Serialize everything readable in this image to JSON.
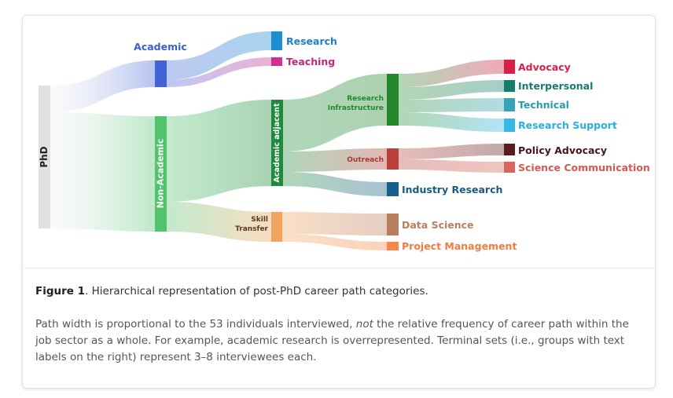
{
  "diagram": {
    "nodes": [
      {
        "id": "phd",
        "label": "PhD",
        "color": "#e1e1e1",
        "label_color": "#222222"
      },
      {
        "id": "academic",
        "label": "Academic",
        "color": "#4264d9",
        "label_color": "#3a5fcd"
      },
      {
        "id": "non_academic",
        "label": "Non-Academic",
        "color": "#52c46d",
        "label_color": "#ffffff"
      },
      {
        "id": "research",
        "label": "Research",
        "color": "#1d8fd1",
        "label_color": "#1d7fc4"
      },
      {
        "id": "teaching",
        "label": "Teaching",
        "color": "#d22f8f",
        "label_color": "#c2277f"
      },
      {
        "id": "academic_adjacent",
        "label": "Academic adjacent",
        "color": "#1e8a3a",
        "label_color": "#ffffff"
      },
      {
        "id": "skill_transfer",
        "label": "Skill Transfer",
        "color": "#f2a45e",
        "label_color": "#5a3a1a"
      },
      {
        "id": "research_infrastructure",
        "label": "Research Infrastructure",
        "color": "#25882d",
        "label_color": "#25882d"
      },
      {
        "id": "outreach",
        "label": "Outreach",
        "color": "#b8413a",
        "label_color": "#a63a33"
      },
      {
        "id": "industry_research",
        "label": "Industry Research",
        "color": "#17608a",
        "label_color": "#1b5a82"
      },
      {
        "id": "data_science",
        "label": "Data Science",
        "color": "#b87e5e",
        "label_color": "#b87e5e"
      },
      {
        "id": "project_management",
        "label": "Project Management",
        "color": "#f5874d",
        "label_color": "#f07c3e"
      },
      {
        "id": "advocacy",
        "label": "Advocacy",
        "color": "#d81f45",
        "label_color": "#d81f45"
      },
      {
        "id": "interpersonal",
        "label": "Interpersonal",
        "color": "#157d6d",
        "label_color": "#157d6d"
      },
      {
        "id": "technical",
        "label": "Technical",
        "color": "#36a3b8",
        "label_color": "#2a9ab0"
      },
      {
        "id": "research_support",
        "label": "Research Support",
        "color": "#35b8e6",
        "label_color": "#2aaee0"
      },
      {
        "id": "policy_advocacy",
        "label": "Policy Advocacy",
        "color": "#5a1d1d",
        "label_color": "#4a1515"
      },
      {
        "id": "science_communication",
        "label": "Science Communication",
        "color": "#d9655a",
        "label_color": "#d45a4f"
      }
    ],
    "links": [
      {
        "source": "phd",
        "target": "academic"
      },
      {
        "source": "phd",
        "target": "non_academic"
      },
      {
        "source": "academic",
        "target": "research"
      },
      {
        "source": "academic",
        "target": "teaching"
      },
      {
        "source": "non_academic",
        "target": "academic_adjacent"
      },
      {
        "source": "non_academic",
        "target": "skill_transfer"
      },
      {
        "source": "academic_adjacent",
        "target": "research_infrastructure"
      },
      {
        "source": "academic_adjacent",
        "target": "outreach"
      },
      {
        "source": "academic_adjacent",
        "target": "industry_research"
      },
      {
        "source": "skill_transfer",
        "target": "data_science"
      },
      {
        "source": "skill_transfer",
        "target": "project_management"
      },
      {
        "source": "research_infrastructure",
        "target": "advocacy"
      },
      {
        "source": "research_infrastructure",
        "target": "interpersonal"
      },
      {
        "source": "research_infrastructure",
        "target": "technical"
      },
      {
        "source": "research_infrastructure",
        "target": "research_support"
      },
      {
        "source": "outreach",
        "target": "policy_advocacy"
      },
      {
        "source": "outreach",
        "target": "science_communication"
      }
    ]
  },
  "caption": {
    "figure_label": "Figure 1",
    "figure_text": ". Hierarchical representation of post-PhD career path categories.",
    "note_part1": "Path width is proportional to the 53 individuals interviewed, ",
    "note_emphasis": "not",
    "note_part2": " the relative frequency of career path within the job sector as a whole. For example, academic research is overrepresented. Terminal sets (i.e., groups with text labels on the right) represent 3–8 interviewees each."
  }
}
